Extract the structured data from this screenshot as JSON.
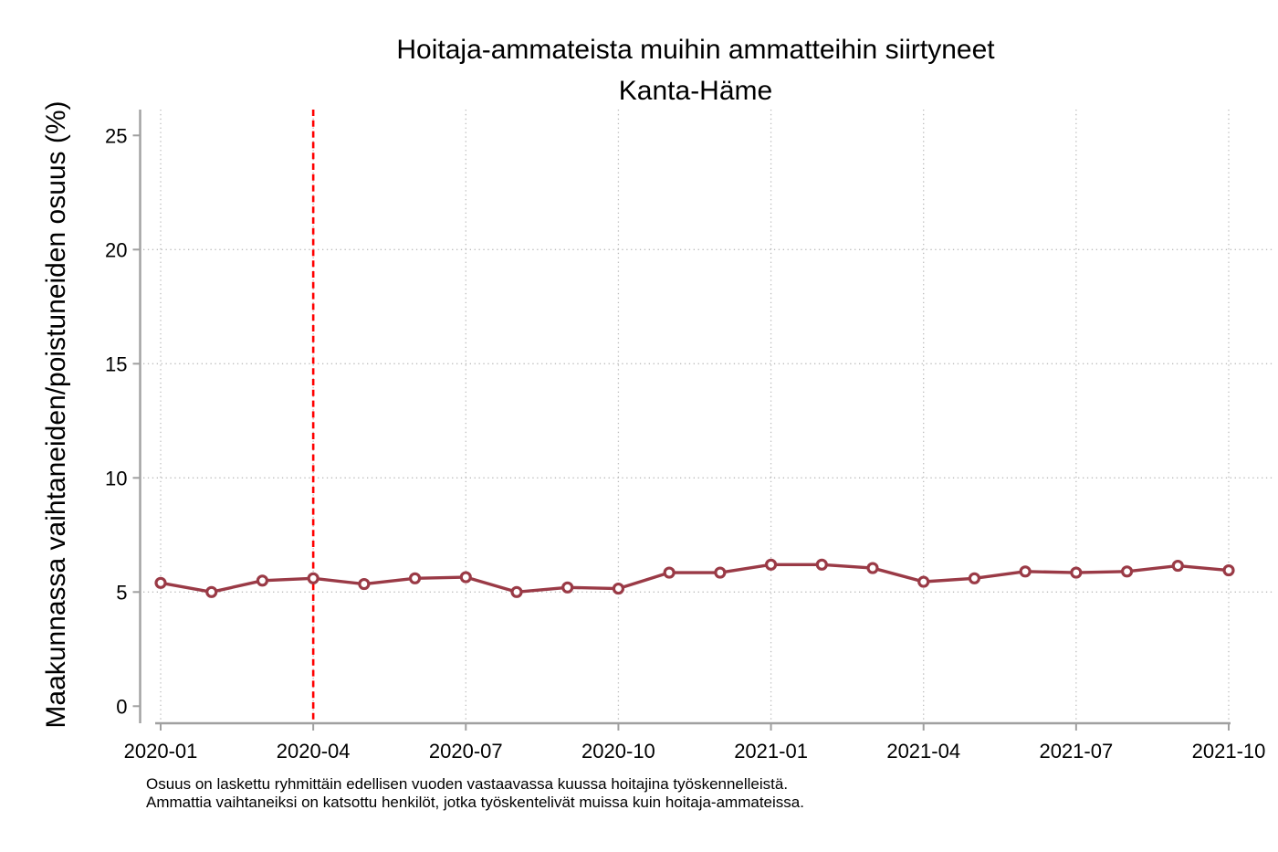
{
  "chart_data": {
    "type": "line",
    "title": "Hoitaja-ammateista muihin ammatteihin siirtyneet",
    "subtitle": "Kanta-Häme",
    "ylabel": "Maakunnassa vaihtaneiden/poistuneiden osuus (%)",
    "xlabel": "",
    "x": [
      "2020-01",
      "2020-02",
      "2020-03",
      "2020-04",
      "2020-05",
      "2020-06",
      "2020-07",
      "2020-08",
      "2020-09",
      "2020-10",
      "2020-11",
      "2020-12",
      "2021-01",
      "2021-02",
      "2021-03",
      "2021-04",
      "2021-05",
      "2021-06",
      "2021-07",
      "2021-08",
      "2021-09",
      "2021-10"
    ],
    "series": [
      {
        "name": "Kanta-Häme",
        "values": [
          5.4,
          5.0,
          5.5,
          5.6,
          5.35,
          5.6,
          5.65,
          5.0,
          5.2,
          5.15,
          5.85,
          5.85,
          6.2,
          6.2,
          6.05,
          5.45,
          5.6,
          5.9,
          5.85,
          5.9,
          6.15,
          5.95
        ],
        "color": "#9a3a46",
        "marker": "open-circle"
      }
    ],
    "x_tick_labels": [
      "2020-01",
      "2020-04",
      "2020-07",
      "2020-10",
      "2021-01",
      "2021-04",
      "2021-07",
      "2021-10"
    ],
    "y_ticks": [
      0,
      5,
      10,
      15,
      20,
      25
    ],
    "ylim": [
      0,
      25
    ],
    "grid": {
      "style": "dotted",
      "horizontal_at": [
        5,
        10,
        15,
        20
      ],
      "vertical_at_x_ticks": true
    },
    "reference_line": {
      "x": "2020-04",
      "style": "dashed",
      "color": "#ff0000"
    },
    "legend": "none",
    "notes": [
      "Osuus on laskettu ryhmittäin edellisen vuoden vastaavassa kuussa hoitajina työskennelleistä.",
      "Ammattia vaihtaneiksi on katsottu henkilöt, jotka työskentelivät muissa kuin hoitaja-ammateissa."
    ],
    "colors": {
      "axis": "#a0a0a0",
      "grid": "#bbbbbb",
      "text": "#000000",
      "marker_fill": "#ffffff"
    }
  }
}
